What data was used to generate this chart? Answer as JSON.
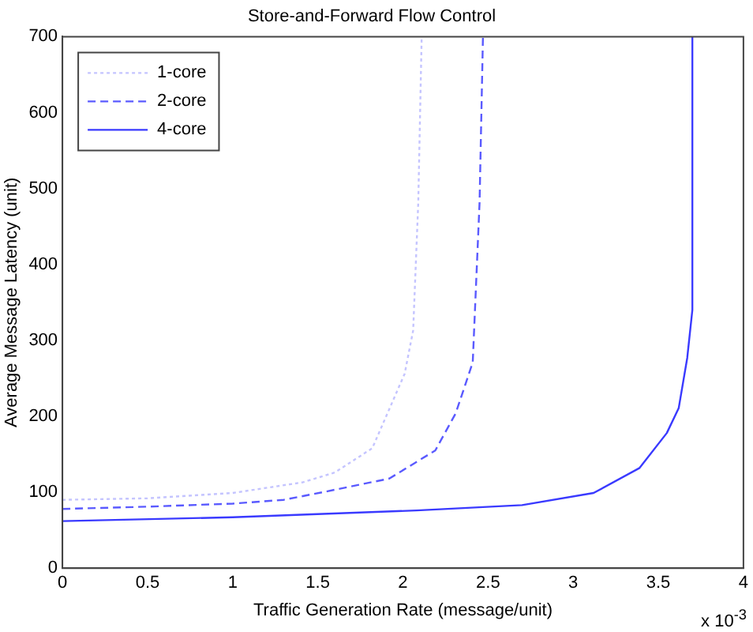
{
  "chart_data": {
    "type": "line",
    "title": "Store-and-Forward Flow Control",
    "xlabel": "Traffic Generation Rate (message/unit)",
    "ylabel": "Average Message Latency (unit)",
    "annotations": [
      "x 10$^{-3}$"
    ],
    "xlim": [
      0,
      4
    ],
    "xticks": [
      0,
      0.5,
      1,
      1.5,
      2,
      2.5,
      3,
      3.5,
      4
    ],
    "ylim": [
      0,
      700
    ],
    "yticks": [
      0,
      100,
      200,
      300,
      400,
      500,
      600,
      700
    ],
    "grid": false,
    "legend": "top left",
    "marker": "none",
    "series": [
      {
        "name": "1-core",
        "color": "#c4c4ff",
        "line_style": "dotted",
        "x": [
          0,
          0.5,
          1,
          1.41,
          1.6,
          1.82,
          2.01,
          2.06,
          2.09,
          2.11
        ],
        "values": [
          90,
          92,
          99,
          113,
          126,
          158,
          256,
          313,
          481,
          700
        ]
      },
      {
        "name": "2-core",
        "color": "#5a5aff",
        "line_style": "dashed",
        "x": [
          0,
          0.5,
          1,
          1.3,
          1.55,
          1.92,
          2.19,
          2.31,
          2.41,
          2.45,
          2.47
        ],
        "values": [
          78,
          81,
          85,
          90,
          101,
          118,
          155,
          204,
          271,
          481,
          700
        ]
      },
      {
        "name": "4-core",
        "color": "#3a3aff",
        "line_style": "solid",
        "x": [
          0,
          1,
          2.08,
          2.7,
          3.12,
          3.39,
          3.55,
          3.62,
          3.67,
          3.7,
          3.7
        ],
        "values": [
          62,
          67,
          76,
          83,
          99,
          132,
          178,
          211,
          277,
          340,
          700
        ]
      }
    ]
  }
}
